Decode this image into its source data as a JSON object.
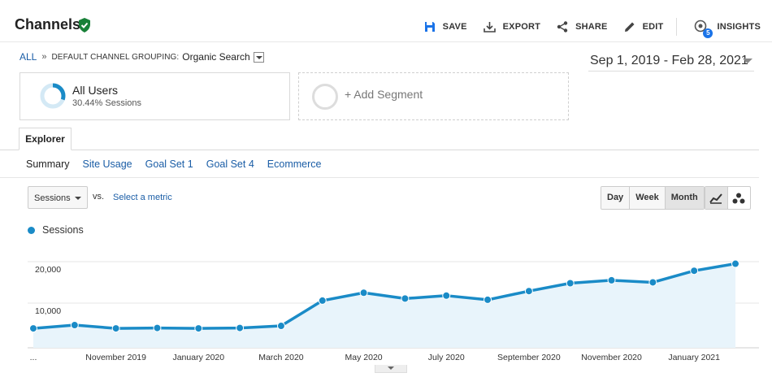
{
  "header": {
    "title": "Channels",
    "actions": {
      "save": "SAVE",
      "export": "EXPORT",
      "share": "SHARE",
      "edit": "EDIT",
      "insights": "INSIGHTS",
      "insights_badge": "5"
    }
  },
  "breadcrumb": {
    "root": "ALL",
    "separator": "»",
    "dimension": "DEFAULT CHANNEL GROUPING:",
    "value": "Organic Search"
  },
  "date_range": "Sep 1, 2019 - Feb 28, 2021",
  "segments": {
    "active": {
      "name": "All Users",
      "detail": "30.44% Sessions"
    },
    "add": "+ Add Segment"
  },
  "tabs": {
    "explorer": "Explorer"
  },
  "subtabs": [
    "Summary",
    "Site Usage",
    "Goal Set 1",
    "Goal Set 4",
    "Ecommerce"
  ],
  "controls": {
    "metric": "Sessions",
    "vs": "vs.",
    "select_metric": "Select a metric",
    "periods": [
      "Day",
      "Week",
      "Month"
    ],
    "active_period": "Month"
  },
  "colors": {
    "line": "#1a8bc7",
    "area": "#e8f4fb",
    "link": "#1a5da6",
    "verified": "#188038"
  },
  "chart_data": {
    "type": "area",
    "legend": [
      "Sessions"
    ],
    "series": [
      {
        "name": "Sessions",
        "values": [
          3900,
          4700,
          3900,
          4000,
          3900,
          4000,
          4500,
          10600,
          12500,
          11100,
          11800,
          10800,
          12900,
          14800,
          15500,
          15000,
          17800,
          19500
        ]
      }
    ],
    "x": [
      "Sep 2019",
      "Oct 2019",
      "Nov 2019",
      "Dec 2019",
      "Jan 2020",
      "Feb 2020",
      "Mar 2020",
      "Apr 2020",
      "May 2020",
      "Jun 2020",
      "Jul 2020",
      "Aug 2020",
      "Sep 2020",
      "Oct 2020",
      "Nov 2020",
      "Dec 2020",
      "Jan 2021",
      "Feb 2021"
    ],
    "x_tick_labels": [
      {
        "index": 0,
        "label": "..."
      },
      {
        "index": 2,
        "label": "November 2019"
      },
      {
        "index": 4,
        "label": "January 2020"
      },
      {
        "index": 6,
        "label": "March 2020"
      },
      {
        "index": 8,
        "label": "May 2020"
      },
      {
        "index": 10,
        "label": "July 2020"
      },
      {
        "index": 12,
        "label": "September 2020"
      },
      {
        "index": 14,
        "label": "November 2020"
      },
      {
        "index": 16,
        "label": "January 2021"
      }
    ],
    "y_ticks": [
      10000,
      20000
    ],
    "y_tick_labels": [
      "10,000",
      "20,000"
    ],
    "ylim": [
      0,
      24700
    ],
    "grid": true
  }
}
